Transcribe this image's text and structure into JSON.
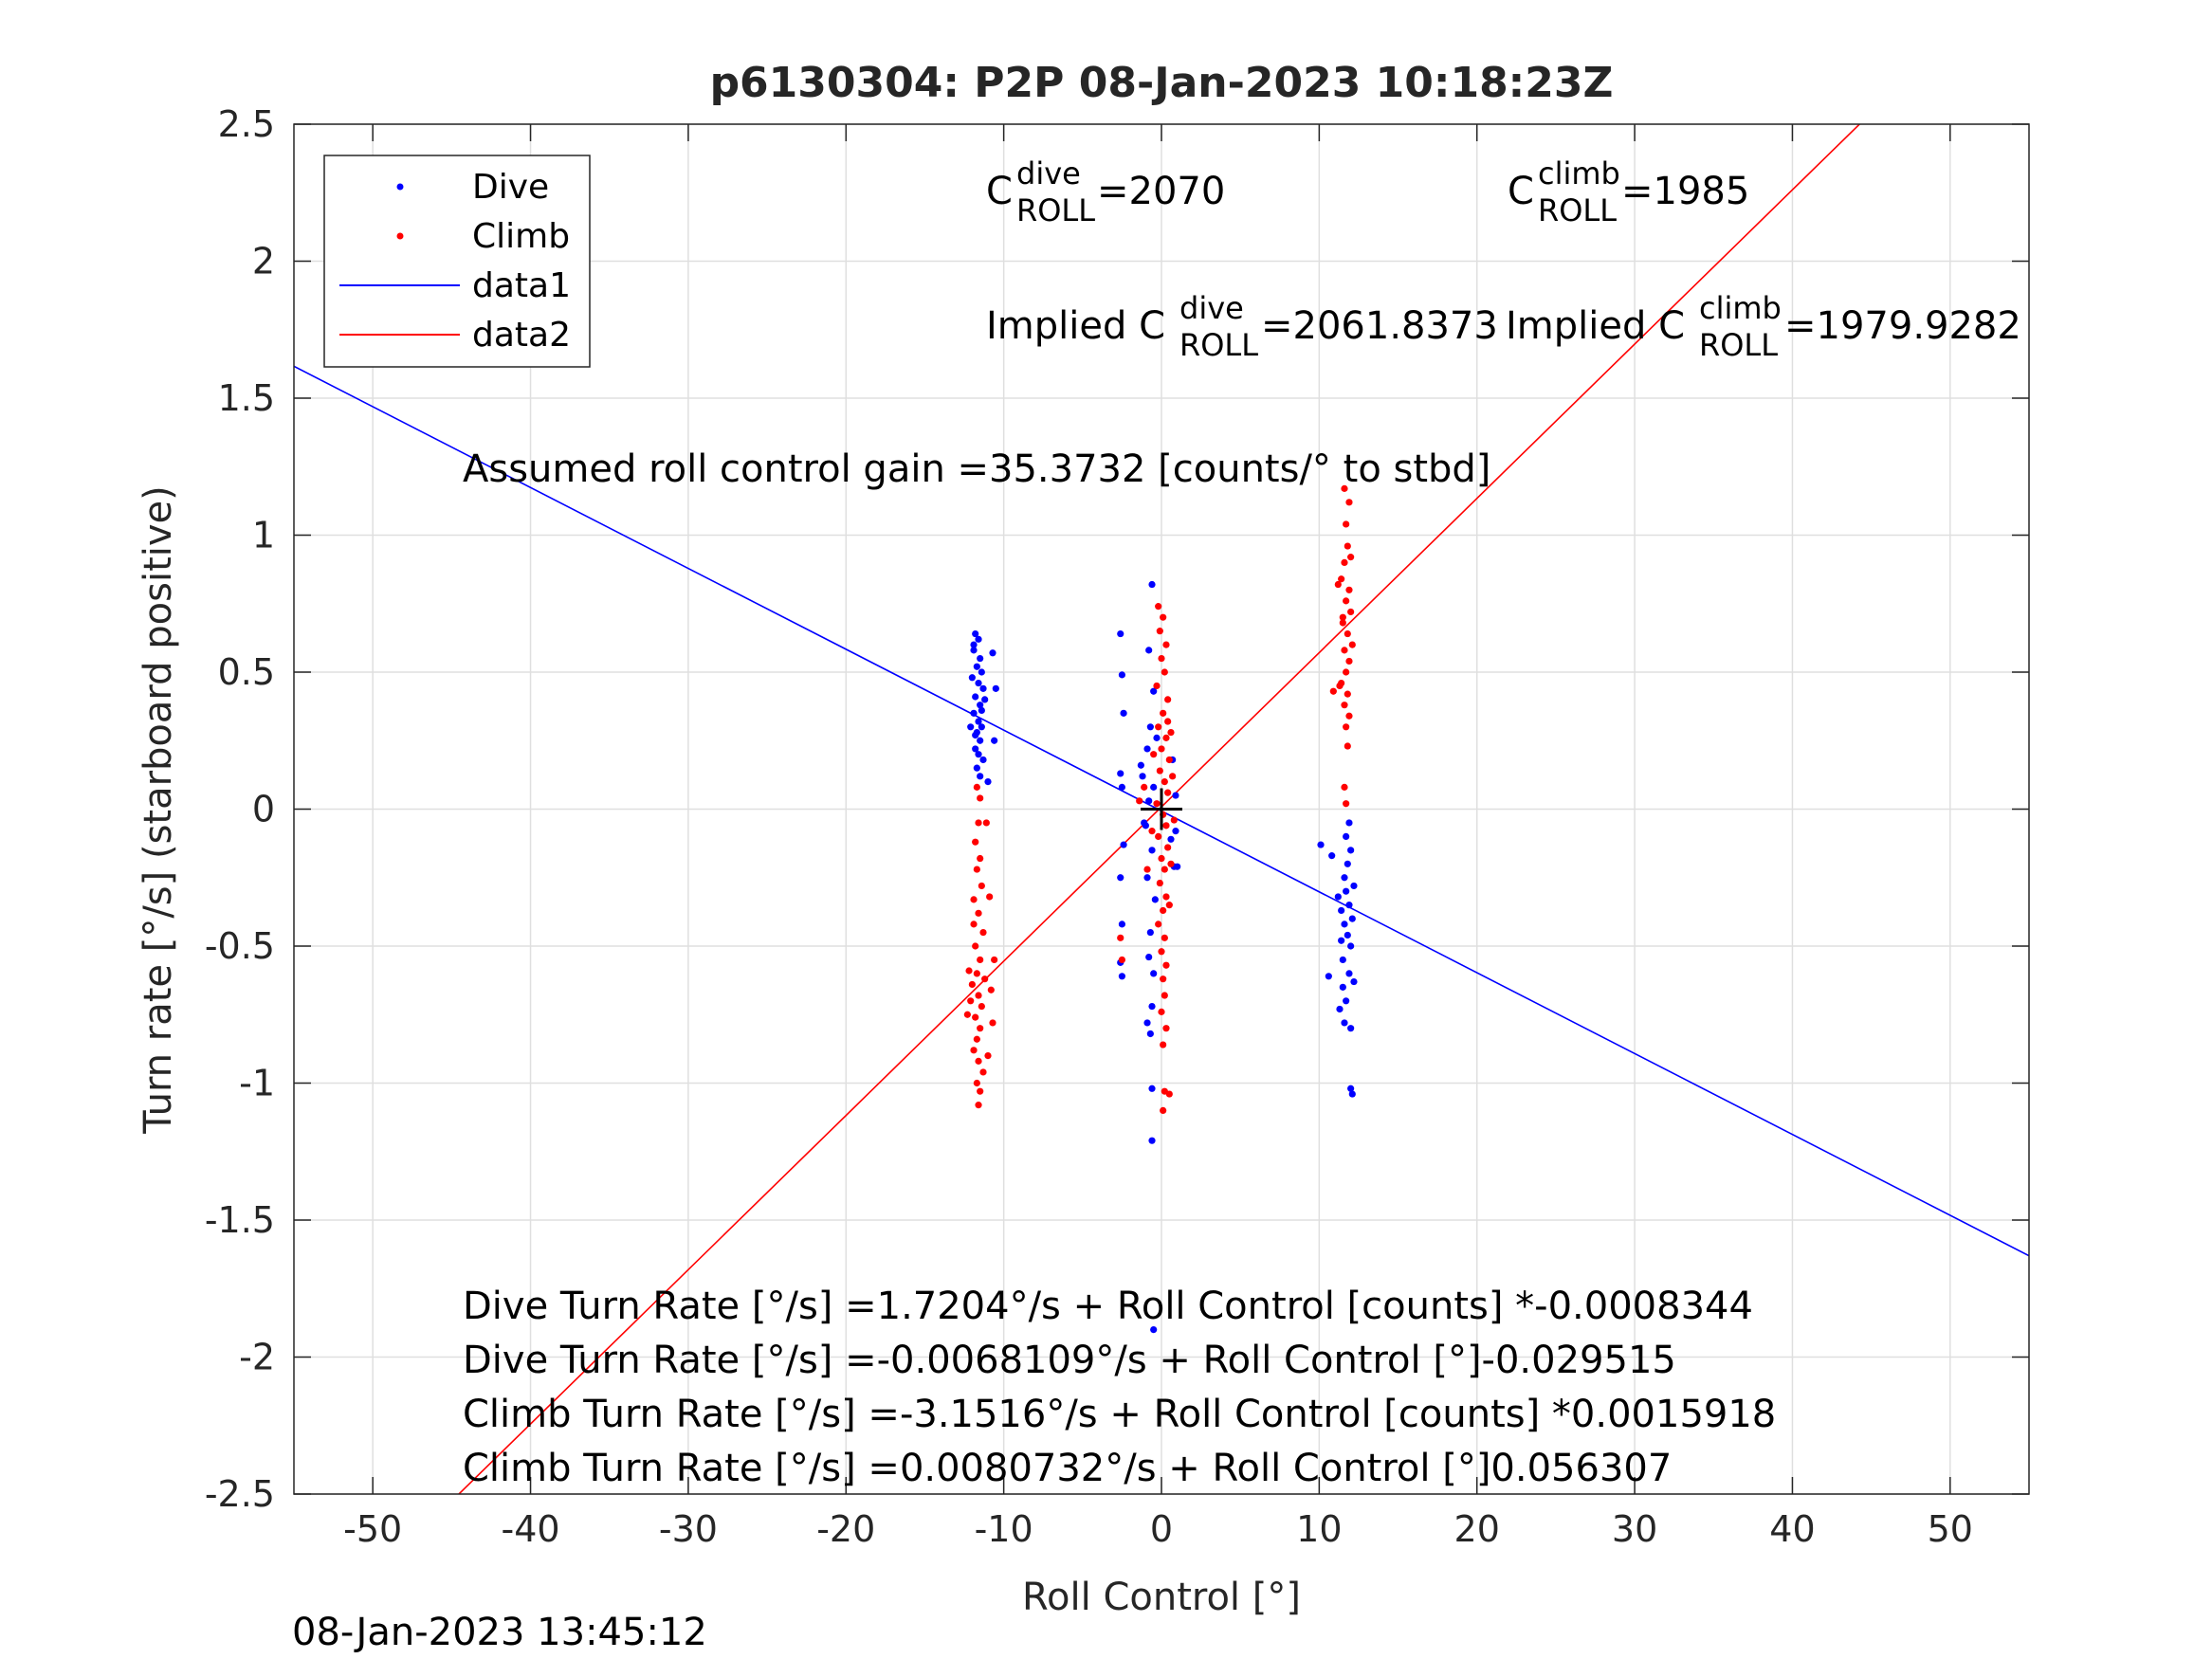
{
  "chart_data": {
    "type": "scatter",
    "title": "p6130304: P2P 08-Jan-2023 10:18:23Z",
    "xlabel": "Roll Control [°]",
    "ylabel": "Turn rate [°/s] (starboard positive)",
    "xlim": [
      -55,
      55
    ],
    "ylim": [
      -2.5,
      2.5
    ],
    "grid": true,
    "legend_position": "top-left",
    "x_ticks": [
      -50,
      -40,
      -30,
      -20,
      -10,
      0,
      10,
      20,
      30,
      40,
      50
    ],
    "x_tick_labels": [
      "-50",
      "-40",
      "-30",
      "-20",
      "-10",
      "0",
      "10",
      "20",
      "30",
      "40",
      "50"
    ],
    "y_ticks": [
      -2.5,
      -2,
      -1.5,
      -1,
      -0.5,
      0,
      0.5,
      1,
      1.5,
      2,
      2.5
    ],
    "y_tick_labels": [
      "-2.5",
      "-2",
      "-1.5",
      "-1",
      "-0.5",
      "0",
      "0.5",
      "1",
      "1.5",
      "2",
      "2.5"
    ],
    "series": [
      {
        "name": "Dive",
        "kind": "points",
        "color": "#0000ff",
        "points": [
          [
            -11.8,
            0.64
          ],
          [
            -11.6,
            0.62
          ],
          [
            -11.9,
            0.58
          ],
          [
            -11.5,
            0.55
          ],
          [
            -11.7,
            0.52
          ],
          [
            -11.4,
            0.5
          ],
          [
            -12.0,
            0.48
          ],
          [
            -11.6,
            0.46
          ],
          [
            -11.3,
            0.44
          ],
          [
            -11.8,
            0.41
          ],
          [
            -11.5,
            0.38
          ],
          [
            -11.9,
            0.35
          ],
          [
            -11.6,
            0.32
          ],
          [
            -11.4,
            0.3
          ],
          [
            -11.7,
            0.28
          ],
          [
            -11.5,
            0.25
          ],
          [
            -11.8,
            0.22
          ],
          [
            -11.6,
            0.2
          ],
          [
            -11.3,
            0.18
          ],
          [
            -11.7,
            0.15
          ],
          [
            -11.5,
            0.12
          ],
          [
            -11.2,
            0.4
          ],
          [
            -12.1,
            0.3
          ],
          [
            -10.7,
            0.57
          ],
          [
            -10.5,
            0.44
          ],
          [
            -10.6,
            0.25
          ],
          [
            -11.9,
            0.6
          ],
          [
            -11.4,
            0.36
          ],
          [
            -11.8,
            0.27
          ],
          [
            -11.0,
            0.1
          ],
          [
            -2.6,
            0.64
          ],
          [
            -2.5,
            0.49
          ],
          [
            -2.4,
            0.35
          ],
          [
            -2.6,
            0.13
          ],
          [
            -2.5,
            0.08
          ],
          [
            -2.4,
            -0.13
          ],
          [
            -2.6,
            -0.25
          ],
          [
            -2.5,
            -0.42
          ],
          [
            -2.6,
            -0.56
          ],
          [
            -2.5,
            -0.61
          ],
          [
            -0.6,
            0.82
          ],
          [
            -0.8,
            0.58
          ],
          [
            -0.5,
            0.43
          ],
          [
            -0.7,
            0.3
          ],
          [
            -0.9,
            0.22
          ],
          [
            -1.2,
            0.12
          ],
          [
            -0.5,
            0.08
          ],
          [
            -0.8,
            0.03
          ],
          [
            -1.0,
            -0.06
          ],
          [
            -0.6,
            -0.15
          ],
          [
            -0.9,
            -0.25
          ],
          [
            -0.4,
            -0.33
          ],
          [
            -0.7,
            -0.45
          ],
          [
            -0.8,
            -0.54
          ],
          [
            -0.5,
            -0.6
          ],
          [
            -0.6,
            -0.72
          ],
          [
            -0.9,
            -0.78
          ],
          [
            -0.7,
            -0.82
          ],
          [
            -0.6,
            -1.02
          ],
          [
            -0.6,
            -1.21
          ],
          [
            -0.5,
            -1.9
          ],
          [
            -1.3,
            0.16
          ],
          [
            -1.1,
            -0.05
          ],
          [
            -0.3,
            0.26
          ],
          [
            0.9,
            0.05
          ],
          [
            0.9,
            -0.08
          ],
          [
            0.8,
            -0.21
          ],
          [
            1.0,
            -0.21
          ],
          [
            0.7,
            0.18
          ],
          [
            0.6,
            -0.11
          ],
          [
            10.1,
            -0.13
          ],
          [
            10.6,
            -0.61
          ],
          [
            10.8,
            -0.17
          ],
          [
            11.2,
            -0.32
          ],
          [
            11.4,
            -0.37
          ],
          [
            11.6,
            -0.42
          ],
          [
            11.8,
            -0.46
          ],
          [
            12.0,
            -0.5
          ],
          [
            11.5,
            -0.55
          ],
          [
            11.9,
            -0.6
          ],
          [
            11.7,
            -0.3
          ],
          [
            11.6,
            -0.25
          ],
          [
            11.8,
            -0.2
          ],
          [
            12.0,
            -0.15
          ],
          [
            11.7,
            -0.1
          ],
          [
            11.9,
            -0.05
          ],
          [
            12.1,
            -0.4
          ],
          [
            12.2,
            -0.28
          ],
          [
            11.5,
            -0.65
          ],
          [
            11.7,
            -0.7
          ],
          [
            11.6,
            -0.78
          ],
          [
            12.0,
            -0.8
          ],
          [
            11.3,
            -0.73
          ],
          [
            12.2,
            -0.63
          ],
          [
            12.0,
            -1.02
          ],
          [
            12.1,
            -1.04
          ],
          [
            11.4,
            -0.48
          ],
          [
            11.9,
            -0.35
          ]
        ]
      },
      {
        "name": "Climb",
        "kind": "points",
        "color": "#ff0000",
        "points": [
          [
            -11.7,
            0.08
          ],
          [
            -11.5,
            0.04
          ],
          [
            -11.6,
            -0.05
          ],
          [
            -11.8,
            -0.12
          ],
          [
            -11.5,
            -0.18
          ],
          [
            -11.7,
            -0.22
          ],
          [
            -11.4,
            -0.28
          ],
          [
            -11.9,
            -0.33
          ],
          [
            -11.6,
            -0.38
          ],
          [
            -11.3,
            -0.45
          ],
          [
            -11.8,
            -0.5
          ],
          [
            -11.5,
            -0.55
          ],
          [
            -11.7,
            -0.6
          ],
          [
            -12.0,
            -0.64
          ],
          [
            -11.6,
            -0.68
          ],
          [
            -11.4,
            -0.72
          ],
          [
            -11.8,
            -0.76
          ],
          [
            -11.5,
            -0.8
          ],
          [
            -11.7,
            -0.84
          ],
          [
            -11.9,
            -0.88
          ],
          [
            -11.6,
            -0.92
          ],
          [
            -11.3,
            -0.96
          ],
          [
            -11.7,
            -1.0
          ],
          [
            -11.5,
            -1.03
          ],
          [
            -11.6,
            -1.08
          ],
          [
            -12.1,
            -0.7
          ],
          [
            -11.2,
            -0.62
          ],
          [
            -10.8,
            -0.66
          ],
          [
            -10.6,
            -0.55
          ],
          [
            -10.9,
            -0.32
          ],
          [
            -11.1,
            -0.05
          ],
          [
            -12.2,
            -0.59
          ],
          [
            -11.0,
            -0.9
          ],
          [
            -12.3,
            -0.75
          ],
          [
            -10.7,
            -0.78
          ],
          [
            -11.9,
            -0.42
          ],
          [
            -2.6,
            -0.47
          ],
          [
            -2.5,
            -0.55
          ],
          [
            -1.4,
            0.03
          ],
          [
            -0.9,
            -0.22
          ],
          [
            -1.1,
            0.08
          ],
          [
            -0.2,
            0.74
          ],
          [
            0.1,
            0.7
          ],
          [
            -0.1,
            0.65
          ],
          [
            0.3,
            0.6
          ],
          [
            0.0,
            0.55
          ],
          [
            0.2,
            0.5
          ],
          [
            -0.3,
            0.45
          ],
          [
            0.4,
            0.4
          ],
          [
            0.1,
            0.35
          ],
          [
            -0.2,
            0.3
          ],
          [
            0.3,
            0.26
          ],
          [
            0.0,
            0.22
          ],
          [
            0.5,
            0.18
          ],
          [
            -0.1,
            0.14
          ],
          [
            0.2,
            0.1
          ],
          [
            0.4,
            0.06
          ],
          [
            -0.3,
            0.02
          ],
          [
            0.1,
            -0.02
          ],
          [
            0.3,
            -0.06
          ],
          [
            -0.2,
            -0.1
          ],
          [
            0.4,
            -0.14
          ],
          [
            0.0,
            -0.18
          ],
          [
            0.2,
            -0.22
          ],
          [
            -0.1,
            -0.27
          ],
          [
            0.3,
            -0.32
          ],
          [
            0.1,
            -0.37
          ],
          [
            -0.2,
            -0.42
          ],
          [
            0.2,
            -0.47
          ],
          [
            0.0,
            -0.52
          ],
          [
            0.3,
            -0.57
          ],
          [
            0.1,
            -0.62
          ],
          [
            0.2,
            -0.68
          ],
          [
            0.0,
            -0.74
          ],
          [
            0.3,
            -0.8
          ],
          [
            0.1,
            -0.86
          ],
          [
            0.6,
            0.28
          ],
          [
            0.7,
            0.12
          ],
          [
            0.8,
            -0.04
          ],
          [
            0.6,
            -0.2
          ],
          [
            -0.5,
            0.2
          ],
          [
            -0.6,
            -0.08
          ],
          [
            0.2,
            -1.03
          ],
          [
            0.5,
            -1.04
          ],
          [
            0.1,
            -1.1
          ],
          [
            0.4,
            0.32
          ],
          [
            0.5,
            -0.35
          ],
          [
            11.6,
            1.17
          ],
          [
            11.9,
            1.12
          ],
          [
            11.7,
            1.04
          ],
          [
            11.8,
            0.96
          ],
          [
            11.6,
            0.9
          ],
          [
            11.4,
            0.84
          ],
          [
            11.9,
            0.8
          ],
          [
            11.7,
            0.76
          ],
          [
            12.0,
            0.72
          ],
          [
            11.5,
            0.68
          ],
          [
            11.8,
            0.64
          ],
          [
            11.6,
            0.58
          ],
          [
            11.9,
            0.54
          ],
          [
            11.7,
            0.5
          ],
          [
            11.4,
            0.46
          ],
          [
            11.8,
            0.42
          ],
          [
            11.6,
            0.38
          ],
          [
            11.9,
            0.34
          ],
          [
            11.7,
            0.3
          ],
          [
            11.8,
            0.23
          ],
          [
            11.6,
            0.08
          ],
          [
            11.7,
            0.02
          ],
          [
            11.3,
            0.45
          ],
          [
            10.9,
            0.43
          ],
          [
            12.1,
            0.6
          ],
          [
            11.2,
            0.82
          ],
          [
            12.0,
            0.92
          ],
          [
            11.5,
            0.7
          ]
        ]
      },
      {
        "name": "data1",
        "kind": "line",
        "color": "#0000ff",
        "slope": -0.029515,
        "intercept": -0.0068109
      },
      {
        "name": "data2",
        "kind": "line",
        "color": "#ff0000",
        "slope": 0.056307,
        "intercept": 0.0080732
      }
    ],
    "annotations": {
      "c_dive_prefix": "C",
      "c_dive_sup": "dive",
      "c_dive_sub": "ROLL",
      "c_dive_value": " =2070",
      "c_climb_prefix": "C",
      "c_climb_sup": "climb",
      "c_climb_sub": "ROLL",
      "c_climb_value": " =1985",
      "implied_dive_prefix": "Implied C",
      "implied_dive_sup": "dive",
      "implied_dive_sub": "ROLL",
      "implied_dive_value": " =2061.8373",
      "implied_climb_prefix": "Implied C",
      "implied_climb_sup": "climb",
      "implied_climb_sub": "ROLL",
      "implied_climb_value": " =1979.9282",
      "gain": "Assumed roll control gain =35.3732 [counts/° to stbd]",
      "eq1": "Dive Turn Rate [°/s] =1.7204°/s + Roll Control [counts] *-0.0008344",
      "eq2": "Dive Turn Rate [°/s] =-0.0068109°/s + Roll Control [°]-0.029515",
      "eq3": "Climb Turn Rate [°/s] =-3.1516°/s + Roll Control [counts] *0.0015918",
      "eq4": "Climb Turn Rate [°/s] =0.0080732°/s + Roll Control [°]0.056307"
    },
    "center_marker": [
      0,
      0
    ]
  },
  "footer_timestamp": "08-Jan-2023 13:45:12"
}
